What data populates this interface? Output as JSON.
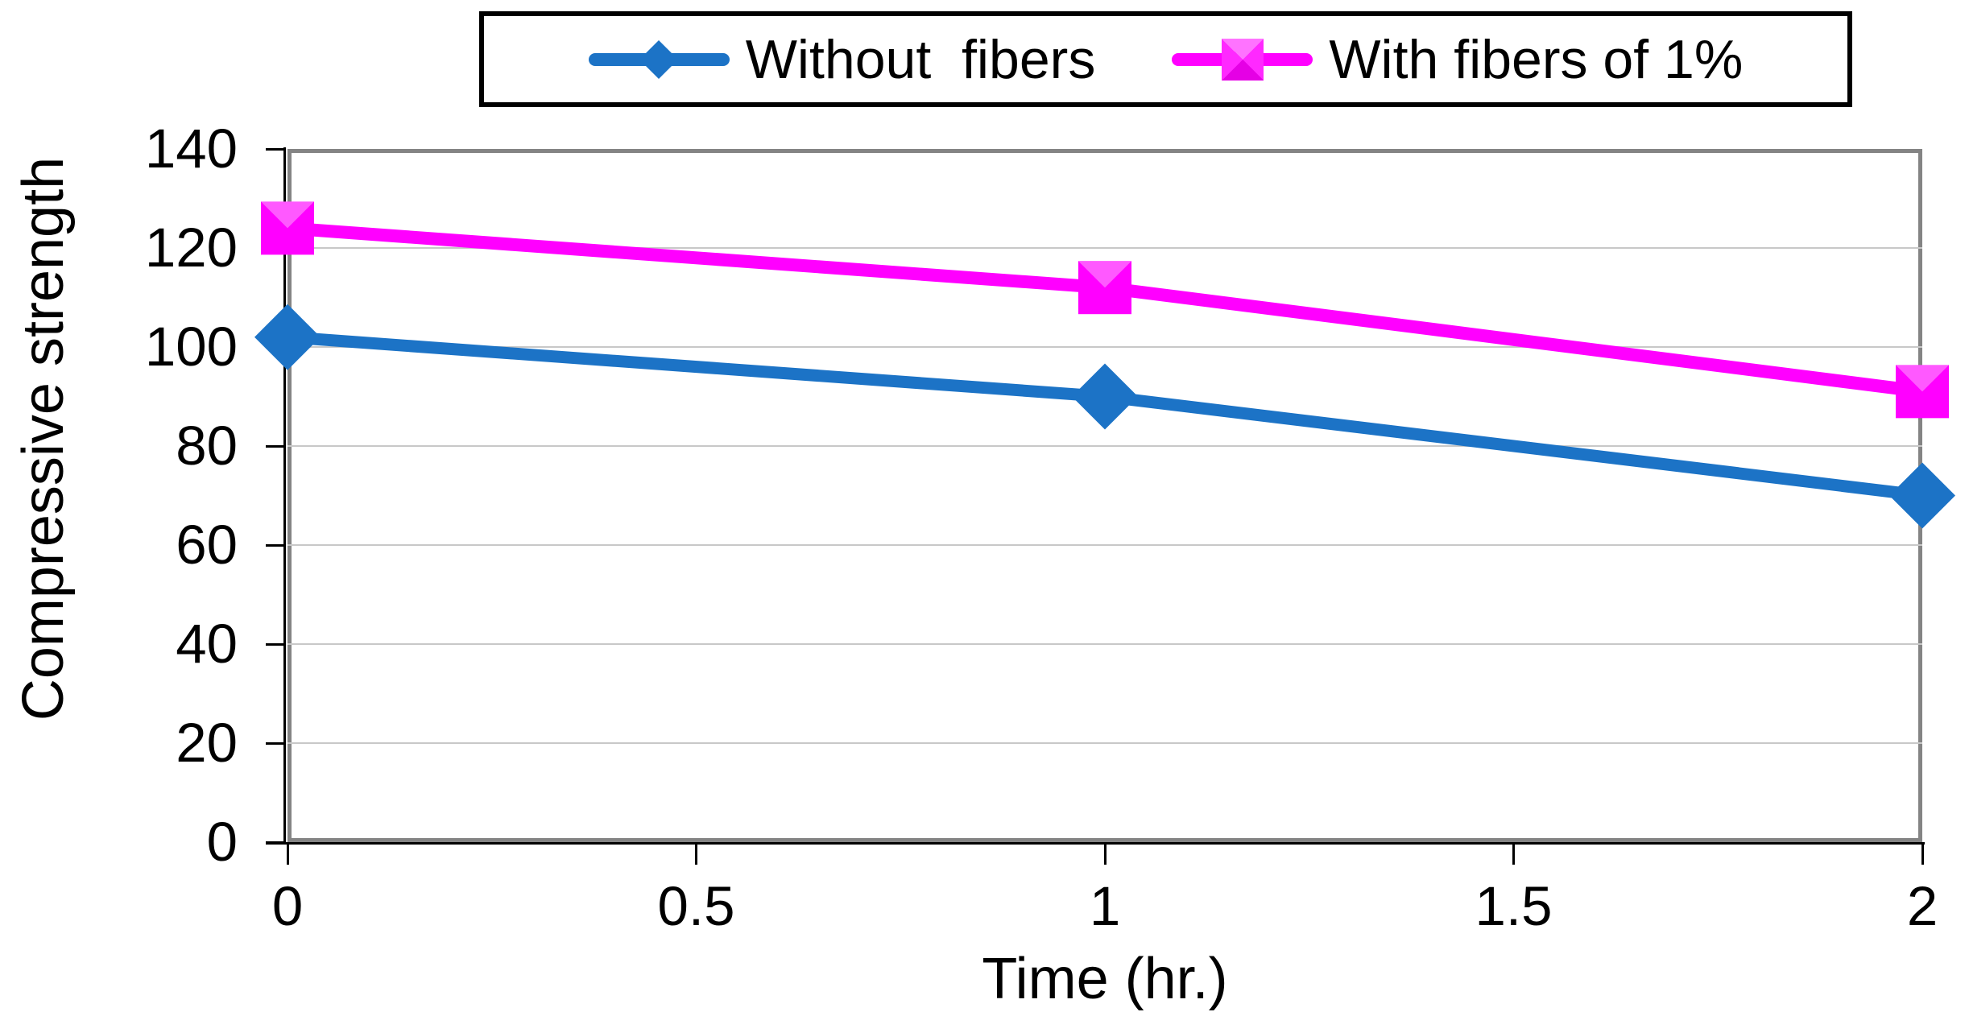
{
  "chart_data": {
    "type": "line",
    "title": "",
    "xlabel": "Time (hr.)",
    "ylabel": "Compressive strength",
    "x": [
      0,
      1,
      2
    ],
    "series": [
      {
        "name": "Without  fibers",
        "marker": "diamond",
        "color": "#1C73C6",
        "values": [
          102,
          90,
          70
        ]
      },
      {
        "name": "With fibers of 1%",
        "marker": "square",
        "color": "#FF00FF",
        "values": [
          124,
          112,
          91
        ]
      }
    ],
    "xlim": [
      0,
      2
    ],
    "ylim": [
      0,
      140
    ],
    "x_ticks": [
      0,
      0.5,
      1,
      1.5,
      2
    ],
    "x_tick_labels": [
      "0",
      "0.5",
      "1",
      "1.5",
      "2"
    ],
    "y_ticks": [
      0,
      20,
      40,
      60,
      80,
      100,
      120,
      140
    ],
    "grid": "horizontal",
    "legend_position": "top-center",
    "styles": {
      "gridline_color": "#C8C8C8",
      "plot_border_color": "#848484",
      "axis_color": "#000000",
      "legend_border_color": "#000000",
      "marker_bevel_light": "#FF70FF",
      "background": "#FFFFFF"
    }
  }
}
